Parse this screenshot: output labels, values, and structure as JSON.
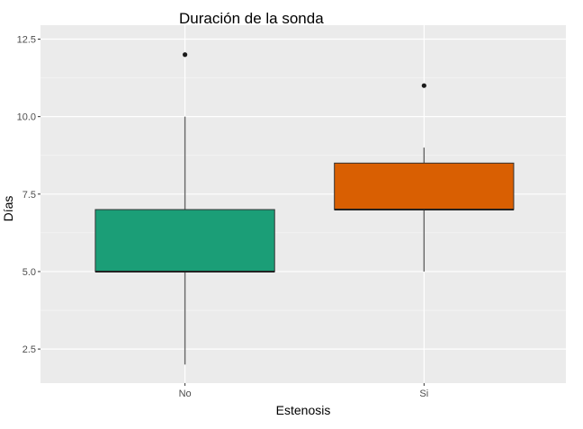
{
  "chart_data": {
    "type": "boxplot",
    "title": "Duración de la sonda",
    "xlabel": "Estenosis",
    "ylabel": "Días",
    "categories": [
      "No",
      "Si"
    ],
    "ylim": [
      1.4,
      12.95
    ],
    "yticks": [
      2.5,
      5.0,
      7.5,
      10.0,
      12.5
    ],
    "ytick_labels": [
      "2.5",
      "5.0",
      "7.5",
      "10.0",
      "12.5"
    ],
    "grid": true,
    "boxes": [
      {
        "category": "No",
        "whisker_low": 2,
        "q1": 5,
        "median": 5,
        "q3": 7,
        "whisker_high": 10,
        "outliers": [
          12
        ],
        "color": "#1b9e77"
      },
      {
        "category": "Si",
        "whisker_low": 5,
        "q1": 7,
        "median": 7,
        "q3": 8.5,
        "whisker_high": 9,
        "outliers": [
          11
        ],
        "color": "#d95f02"
      }
    ],
    "colors": {
      "panel": "#ebebeb",
      "grid_major": "#ffffff",
      "box_outline": "#333333",
      "whisker": "#666666",
      "outlier": "#1a1a1a"
    }
  }
}
